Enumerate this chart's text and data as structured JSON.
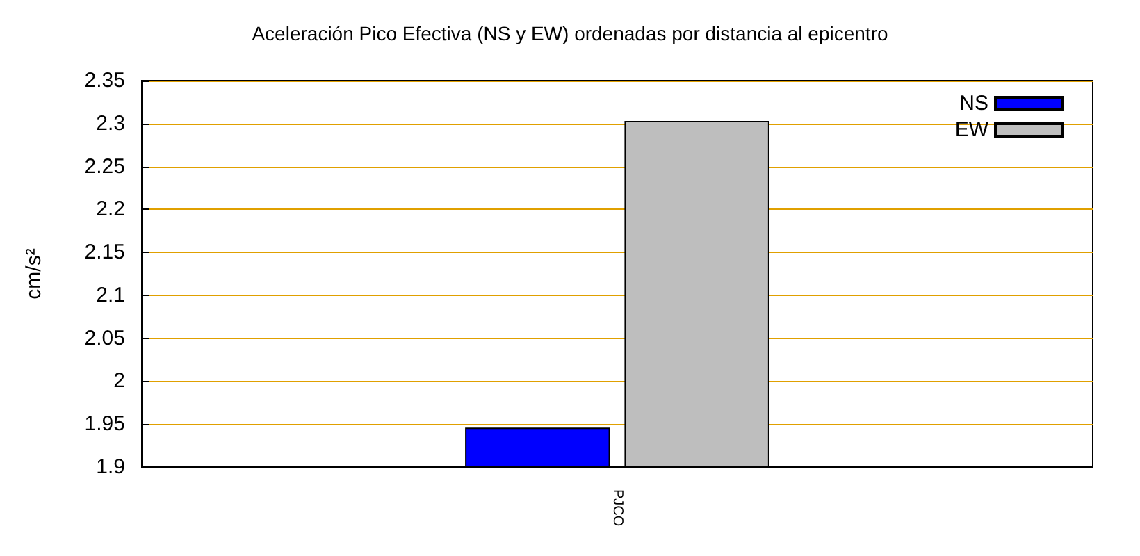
{
  "chart_data": {
    "type": "bar",
    "title": "Aceleración Pico Efectiva (NS y EW) ordenadas por distancia al epicentro",
    "ylabel": "cm/s²",
    "categories": [
      "PJCO"
    ],
    "series": [
      {
        "name": "NS",
        "color": "#0000ff",
        "values": [
          1.946
        ]
      },
      {
        "name": "EW",
        "color": "#bebebe",
        "values": [
          2.303
        ]
      }
    ],
    "ylim": [
      1.9,
      2.35
    ],
    "yticks": [
      1.9,
      1.95,
      2,
      2.05,
      2.1,
      2.15,
      2.2,
      2.25,
      2.3,
      2.35
    ],
    "grid": "y",
    "legend": "top right"
  }
}
